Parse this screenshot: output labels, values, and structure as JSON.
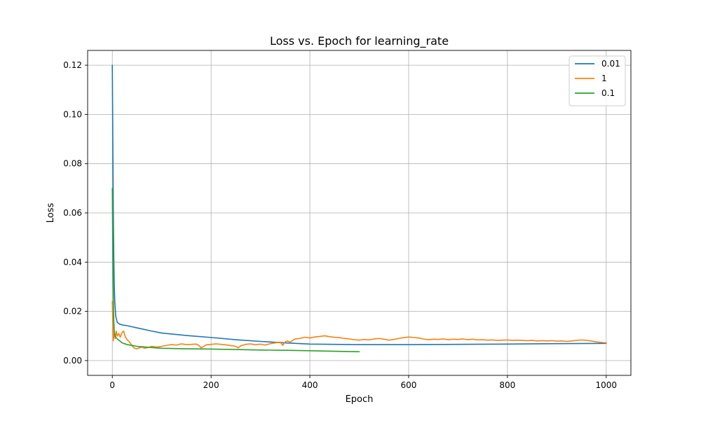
{
  "chart_data": {
    "type": "line",
    "title": "Loss vs. Epoch for learning_rate",
    "xlabel": "Epoch",
    "ylabel": "Loss",
    "xlim": [
      -50,
      1050
    ],
    "ylim": [
      -0.006,
      0.126
    ],
    "xticks": [
      0,
      200,
      400,
      600,
      800,
      1000
    ],
    "xtick_labels": [
      "0",
      "200",
      "400",
      "600",
      "800",
      "1000"
    ],
    "yticks": [
      0.0,
      0.02,
      0.04,
      0.06,
      0.08,
      0.1,
      0.12
    ],
    "ytick_labels": [
      "0.00",
      "0.02",
      "0.04",
      "0.06",
      "0.08",
      "0.10",
      "0.12"
    ],
    "grid": true,
    "legend_position": "top-right",
    "series": [
      {
        "name": "0.01",
        "color": "#1f77b4",
        "x": [
          0,
          1,
          2,
          3,
          4,
          5,
          7,
          10,
          15,
          20,
          30,
          50,
          80,
          100,
          150,
          200,
          250,
          300,
          350,
          400,
          500,
          600,
          700,
          800,
          900,
          1000
        ],
        "y": [
          0.12,
          0.09,
          0.06,
          0.042,
          0.03,
          0.024,
          0.018,
          0.0155,
          0.0148,
          0.0145,
          0.0142,
          0.0133,
          0.012,
          0.0112,
          0.0102,
          0.0094,
          0.0085,
          0.0078,
          0.0072,
          0.0067,
          0.0065,
          0.0065,
          0.0066,
          0.0067,
          0.0069,
          0.007
        ]
      },
      {
        "name": "1",
        "color": "#ff7f0e",
        "x": [
          0,
          2,
          4,
          6,
          8,
          10,
          13,
          16,
          20,
          23,
          26,
          30,
          35,
          40,
          45,
          50,
          55,
          60,
          65,
          70,
          75,
          80,
          90,
          100,
          110,
          120,
          130,
          140,
          150,
          160,
          170,
          175,
          180,
          185,
          190,
          200,
          210,
          220,
          230,
          240,
          250,
          255,
          260,
          270,
          280,
          290,
          300,
          310,
          320,
          330,
          340,
          345,
          350,
          355,
          360,
          370,
          380,
          390,
          400,
          410,
          420,
          430,
          440,
          450,
          460,
          470,
          480,
          490,
          500,
          510,
          520,
          530,
          540,
          550,
          560,
          570,
          580,
          590,
          600,
          610,
          620,
          630,
          640,
          650,
          660,
          670,
          680,
          690,
          700,
          710,
          720,
          730,
          740,
          750,
          760,
          770,
          780,
          790,
          800,
          810,
          820,
          830,
          840,
          850,
          860,
          870,
          880,
          890,
          900,
          910,
          920,
          930,
          940,
          950,
          960,
          970,
          980,
          990,
          1000
        ],
        "y": [
          0.024,
          0.008,
          0.011,
          0.009,
          0.012,
          0.01,
          0.011,
          0.0095,
          0.0115,
          0.012,
          0.0098,
          0.0085,
          0.0075,
          0.006,
          0.005,
          0.0048,
          0.0052,
          0.0055,
          0.005,
          0.0052,
          0.0055,
          0.0058,
          0.0055,
          0.0058,
          0.0062,
          0.0065,
          0.0063,
          0.0068,
          0.0065,
          0.0066,
          0.0067,
          0.0062,
          0.0052,
          0.0058,
          0.0064,
          0.0066,
          0.0068,
          0.0066,
          0.0064,
          0.0061,
          0.0058,
          0.0052,
          0.006,
          0.0066,
          0.0068,
          0.0064,
          0.0067,
          0.0063,
          0.0069,
          0.0072,
          0.0075,
          0.0062,
          0.0076,
          0.008,
          0.0075,
          0.0088,
          0.009,
          0.0095,
          0.0092,
          0.0096,
          0.0098,
          0.0101,
          0.0097,
          0.0095,
          0.0093,
          0.009,
          0.0088,
          0.0085,
          0.0083,
          0.0086,
          0.0084,
          0.0088,
          0.009,
          0.0087,
          0.0083,
          0.0086,
          0.009,
          0.0093,
          0.0096,
          0.0094,
          0.0092,
          0.0088,
          0.0085,
          0.0087,
          0.0086,
          0.0088,
          0.0085,
          0.0087,
          0.0086,
          0.0088,
          0.0085,
          0.0087,
          0.0084,
          0.0085,
          0.0083,
          0.0084,
          0.0082,
          0.0083,
          0.0084,
          0.0082,
          0.0083,
          0.0082,
          0.0081,
          0.0082,
          0.008,
          0.0081,
          0.008,
          0.0081,
          0.0079,
          0.008,
          0.0078,
          0.008,
          0.0082,
          0.0084,
          0.0082,
          0.008,
          0.0076,
          0.0074,
          0.0072
        ]
      },
      {
        "name": "0.1",
        "color": "#2ca02c",
        "x": [
          0,
          1,
          2,
          3,
          4,
          5,
          7,
          10,
          15,
          20,
          30,
          50,
          80,
          100,
          150,
          200,
          250,
          300,
          350,
          400,
          450,
          500
        ],
        "y": [
          0.07,
          0.045,
          0.025,
          0.016,
          0.012,
          0.0105,
          0.0095,
          0.0088,
          0.008,
          0.0072,
          0.0065,
          0.0058,
          0.0053,
          0.005,
          0.0048,
          0.0047,
          0.0045,
          0.0043,
          0.0042,
          0.004,
          0.0038,
          0.0036
        ]
      }
    ]
  }
}
